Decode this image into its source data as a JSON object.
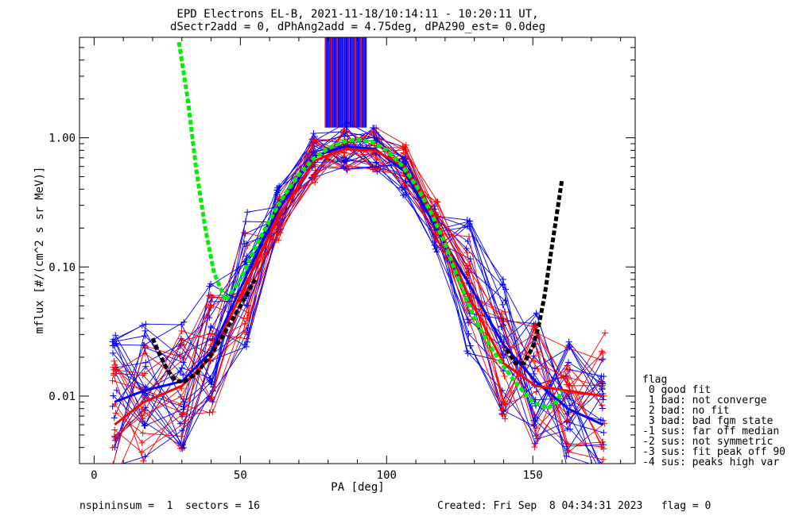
{
  "chart_data": {
    "type": "line",
    "title": "EPD Electrons EL-B, 2021-11-18/10:14:11 - 10:20:11 UT,",
    "subtitle": "dSectr2add = 0, dPhAng2add = 4.75deg, dPA290_est=    0.0deg",
    "xlabel": "PA [deg]",
    "ylabel": "mflux [#/(cm^2 s sr MeV)]",
    "xlim": [
      -5,
      185
    ],
    "ylim": [
      0.003,
      6
    ],
    "y_scale": "log",
    "x_ticks": [
      0,
      50,
      100,
      150
    ],
    "x_tick_labels": [
      "0",
      "50",
      "100",
      "150"
    ],
    "y_ticks": [
      0.01,
      0.1,
      1.0
    ],
    "y_tick_labels": [
      "0.01",
      "0.10",
      "1.00"
    ],
    "pa_bins": [
      7,
      17,
      30,
      40,
      52,
      63,
      75,
      86,
      96,
      106,
      117,
      128,
      140,
      151,
      162,
      174
    ],
    "colors": {
      "blue": "#0000ff",
      "red": "#ff0000",
      "green_fit": "#00ee00",
      "black_fit": "#000000"
    },
    "series": [
      {
        "color": "blue",
        "values": [
          0.009,
          0.011,
          0.013,
          0.022,
          0.085,
          0.28,
          0.72,
          0.86,
          0.82,
          0.55,
          0.2,
          0.075,
          0.025,
          0.013,
          0.008,
          0.006
        ],
        "spread": 0.55,
        "count": 22
      },
      {
        "color": "red",
        "values": [
          0.006,
          0.009,
          0.012,
          0.02,
          0.075,
          0.24,
          0.66,
          0.82,
          0.8,
          0.6,
          0.23,
          0.06,
          0.018,
          0.012,
          0.011,
          0.01
        ],
        "spread": 0.5,
        "count": 16
      }
    ],
    "spikes": {
      "x_range": [
        79,
        93
      ],
      "y_low": 1.2,
      "color": "blue"
    },
    "green_fit": {
      "x": [
        29,
        32,
        35,
        38,
        41,
        45,
        50,
        55,
        60,
        65,
        70,
        75,
        80,
        85,
        90,
        95,
        100,
        105,
        110,
        115,
        120,
        125,
        130,
        135,
        140,
        145,
        150,
        155,
        158,
        160
      ],
      "y": [
        5.5,
        2.0,
        0.55,
        0.2,
        0.09,
        0.055,
        0.08,
        0.14,
        0.23,
        0.36,
        0.52,
        0.69,
        0.83,
        0.93,
        0.97,
        0.93,
        0.8,
        0.62,
        0.43,
        0.27,
        0.15,
        0.075,
        0.04,
        0.025,
        0.017,
        0.012,
        0.009,
        0.008,
        0.009,
        0.011
      ]
    },
    "black_fit": {
      "left": {
        "x": [
          20,
          22,
          25,
          28,
          31,
          35,
          40,
          45,
          50,
          55
        ],
        "y": [
          0.028,
          0.022,
          0.016,
          0.013,
          0.013,
          0.015,
          0.021,
          0.032,
          0.05,
          0.08
        ]
      },
      "right": {
        "x": [
          141,
          144,
          147,
          150,
          152,
          154,
          156,
          158,
          160
        ],
        "y": [
          0.023,
          0.018,
          0.018,
          0.024,
          0.035,
          0.06,
          0.12,
          0.24,
          0.48
        ]
      }
    }
  },
  "legend": {
    "heading": "flag",
    "items": [
      " 0 good fit",
      " 1 bad: not converge",
      " 2 bad: no fit",
      " 3 bad: bad fgm state",
      "-1 sus: far off median",
      "-2 sus: not symmetric",
      "-3 sus: fit peak off 90",
      "-4 sus: peaks high var"
    ]
  },
  "footer": {
    "left": "nspininsum =  1  sectors = 16",
    "right": "Created: Fri Sep  8 04:34:31 2023   flag = 0"
  }
}
